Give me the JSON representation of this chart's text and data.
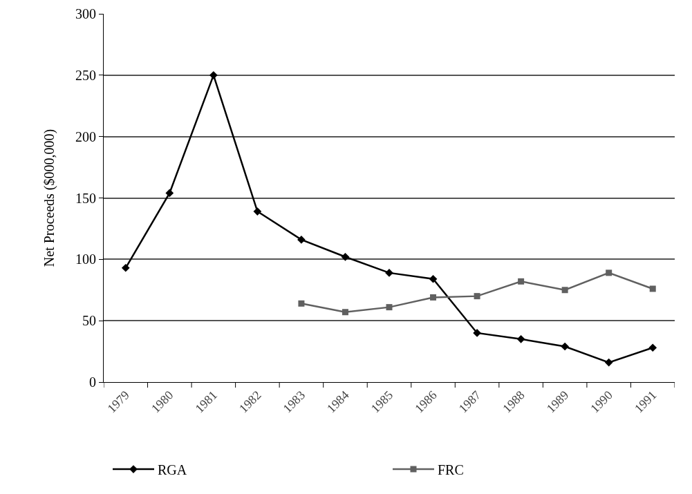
{
  "chart_data": {
    "type": "line",
    "ylabel": "Net Proceeds ($000,000)",
    "categories": [
      "1979",
      "1980",
      "1981",
      "1982",
      "1983",
      "1984",
      "1985",
      "1986",
      "1987",
      "1988",
      "1989",
      "1990",
      "1991"
    ],
    "series": [
      {
        "name": "RGA",
        "color": "#000000",
        "marker": "diamond",
        "values": [
          93,
          154,
          250,
          139,
          116,
          102,
          89,
          84,
          40,
          35,
          29,
          16,
          28
        ]
      },
      {
        "name": "FRC",
        "color": "#606060",
        "marker": "square",
        "values": [
          null,
          null,
          null,
          null,
          64,
          57,
          61,
          69,
          70,
          82,
          75,
          89,
          76
        ]
      }
    ],
    "ylim": [
      0,
      300
    ],
    "yticks": [
      0,
      50,
      100,
      150,
      200,
      250,
      300
    ],
    "grid": "y",
    "legend": "bottom",
    "line_style": "solid"
  }
}
